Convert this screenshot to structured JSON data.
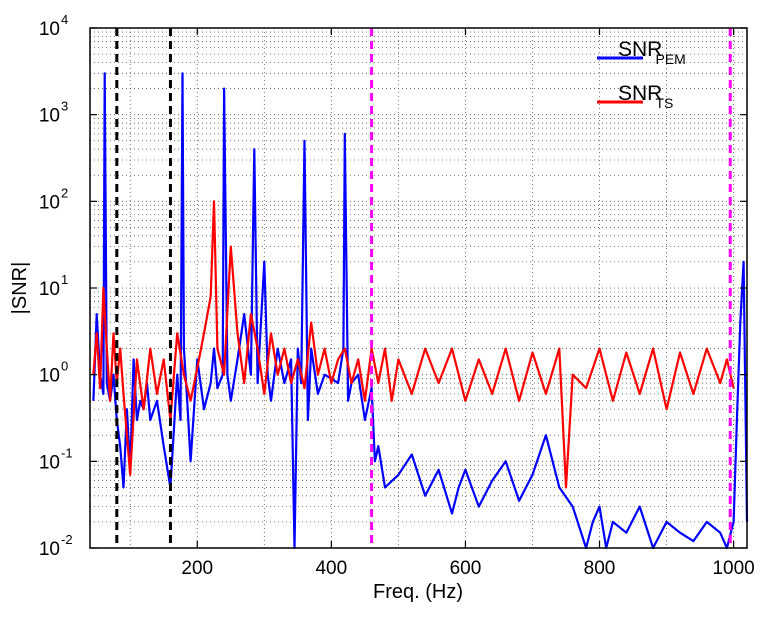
{
  "chart_data": {
    "type": "line",
    "xlabel": "Freq. (Hz)",
    "ylabel": "|SNR|",
    "xlim": [
      40,
      1020
    ],
    "ylim": [
      0.01,
      10000
    ],
    "yscale": "log",
    "grid": true,
    "legend_position": "top-right",
    "x_ticks": [
      {
        "value": 200,
        "label": "200"
      },
      {
        "value": 400,
        "label": "400"
      },
      {
        "value": 600,
        "label": "600"
      },
      {
        "value": 800,
        "label": "800"
      },
      {
        "value": 1000,
        "label": "1000"
      }
    ],
    "y_ticks": [
      {
        "value": 0.01,
        "base": "10",
        "exp": "-2"
      },
      {
        "value": 0.1,
        "base": "10",
        "exp": "-1"
      },
      {
        "value": 1,
        "base": "10",
        "exp": "0"
      },
      {
        "value": 10,
        "base": "10",
        "exp": "1"
      },
      {
        "value": 100,
        "base": "10",
        "exp": "2"
      },
      {
        "value": 1000,
        "base": "10",
        "exp": "3"
      },
      {
        "value": 10000,
        "base": "10",
        "exp": "4"
      }
    ],
    "series": [
      {
        "name": "SNR",
        "subscript": "PEM",
        "color": "#0000ff",
        "x": [
          45,
          50,
          55,
          60,
          62,
          65,
          70,
          75,
          80,
          85,
          90,
          95,
          100,
          105,
          110,
          115,
          120,
          125,
          130,
          140,
          150,
          160,
          170,
          175,
          178,
          180,
          185,
          190,
          200,
          210,
          220,
          225,
          230,
          238,
          240,
          245,
          250,
          260,
          270,
          280,
          285,
          290,
          300,
          305,
          310,
          320,
          330,
          340,
          345,
          350,
          355,
          360,
          365,
          370,
          380,
          390,
          400,
          410,
          418,
          420,
          425,
          430,
          440,
          450,
          460,
          465,
          470,
          480,
          500,
          520,
          540,
          560,
          580,
          590,
          600,
          620,
          640,
          660,
          680,
          700,
          720,
          740,
          760,
          780,
          790,
          800,
          810,
          820,
          840,
          860,
          880,
          900,
          920,
          940,
          960,
          980,
          990,
          1000,
          1005,
          1010,
          1015,
          1020
        ],
        "y": [
          0.5,
          5,
          1,
          0.6,
          3000,
          0.8,
          0.5,
          1,
          0.3,
          0.15,
          0.05,
          0.4,
          0.08,
          1.5,
          0.3,
          0.5,
          0.4,
          0.8,
          0.3,
          0.5,
          0.15,
          0.05,
          1,
          0.3,
          3000,
          2,
          0.5,
          0.1,
          1.5,
          0.4,
          0.8,
          2,
          0.7,
          1,
          2000,
          1,
          0.5,
          1.5,
          5,
          1,
          400,
          0.8,
          20,
          1,
          0.5,
          2,
          0.8,
          1.5,
          0.01,
          2,
          0.8,
          500,
          0.3,
          2,
          0.6,
          1,
          0.9,
          0.8,
          2,
          600,
          0.5,
          0.8,
          1,
          0.3,
          0.7,
          0.1,
          0.15,
          0.05,
          0.07,
          0.12,
          0.04,
          0.08,
          0.025,
          0.05,
          0.08,
          0.03,
          0.06,
          0.1,
          0.035,
          0.07,
          0.2,
          0.05,
          0.03,
          0.01,
          0.02,
          0.03,
          0.01,
          0.02,
          0.015,
          0.03,
          0.01,
          0.02,
          0.015,
          0.012,
          0.02,
          0.015,
          0.01,
          0.02,
          0.3,
          4,
          20,
          0.02
        ]
      },
      {
        "name": "SNR",
        "subscript": "TS",
        "color": "#ff0000",
        "x": [
          45,
          50,
          55,
          60,
          65,
          70,
          75,
          80,
          85,
          90,
          100,
          110,
          120,
          130,
          140,
          150,
          160,
          170,
          180,
          190,
          200,
          210,
          220,
          225,
          230,
          240,
          250,
          260,
          270,
          280,
          290,
          300,
          310,
          320,
          330,
          340,
          350,
          360,
          370,
          380,
          390,
          400,
          410,
          420,
          430,
          440,
          450,
          460,
          470,
          480,
          490,
          500,
          520,
          540,
          560,
          580,
          600,
          620,
          640,
          660,
          680,
          700,
          720,
          740,
          750,
          760,
          780,
          800,
          820,
          840,
          860,
          880,
          900,
          920,
          940,
          960,
          980,
          990,
          1000
        ],
        "y": [
          1,
          3,
          0.7,
          10,
          2,
          0.5,
          3,
          0.8,
          2,
          0.6,
          0.07,
          1.5,
          0.4,
          2,
          0.6,
          1.5,
          0.3,
          3,
          1,
          0.5,
          1.2,
          3,
          8,
          100,
          2,
          1,
          30,
          3,
          0.8,
          5,
          2,
          0.6,
          3,
          1,
          2,
          0.8,
          1.5,
          0.7,
          4,
          1,
          2,
          0.8,
          1.5,
          2,
          0.8,
          1.5,
          0.5,
          2,
          0.8,
          2,
          0.5,
          1.5,
          0.6,
          2,
          0.8,
          2,
          0.5,
          1.5,
          0.6,
          2,
          0.5,
          1.8,
          0.6,
          2,
          0.05,
          1,
          0.7,
          2,
          0.5,
          1.8,
          0.6,
          2,
          0.4,
          1.8,
          0.6,
          2,
          0.8,
          1.5,
          0.7
        ]
      }
    ],
    "reference_lines": [
      {
        "x": 80,
        "color": "#000000"
      },
      {
        "x": 160,
        "color": "#000000"
      },
      {
        "x": 460,
        "color": "#ff00ff"
      },
      {
        "x": 995,
        "color": "#ff00ff"
      }
    ]
  }
}
